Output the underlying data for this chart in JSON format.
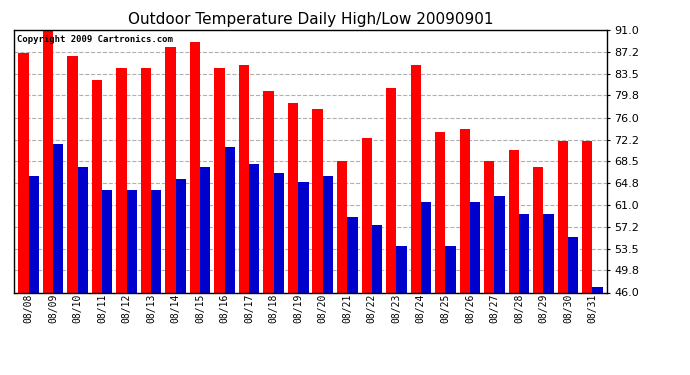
{
  "title": "Outdoor Temperature Daily High/Low 20090901",
  "copyright": "Copyright 2009 Cartronics.com",
  "dates": [
    "08/08",
    "08/09",
    "08/10",
    "08/11",
    "08/12",
    "08/13",
    "08/14",
    "08/15",
    "08/16",
    "08/17",
    "08/18",
    "08/19",
    "08/20",
    "08/21",
    "08/22",
    "08/23",
    "08/24",
    "08/25",
    "08/26",
    "08/27",
    "08/28",
    "08/29",
    "08/30",
    "08/31"
  ],
  "highs": [
    87.0,
    91.0,
    86.5,
    82.5,
    84.5,
    84.5,
    88.0,
    89.0,
    84.5,
    85.0,
    80.5,
    78.5,
    77.5,
    68.5,
    72.5,
    81.0,
    85.0,
    73.5,
    74.0,
    68.5,
    70.5,
    67.5,
    72.0,
    72.0
  ],
  "lows": [
    66.0,
    71.5,
    67.5,
    63.5,
    63.5,
    63.5,
    65.5,
    67.5,
    71.0,
    68.0,
    66.5,
    65.0,
    66.0,
    59.0,
    57.5,
    54.0,
    61.5,
    54.0,
    61.5,
    62.5,
    59.5,
    59.5,
    55.5,
    47.0
  ],
  "high_color": "#ff0000",
  "low_color": "#0000cc",
  "bg_color": "#ffffff",
  "plot_bg_color": "#ffffff",
  "grid_color": "#b0b0b0",
  "title_fontsize": 11,
  "yticks": [
    46.0,
    49.8,
    53.5,
    57.2,
    61.0,
    64.8,
    68.5,
    72.2,
    76.0,
    79.8,
    83.5,
    87.2,
    91.0
  ],
  "ymin": 46.0,
  "ymax": 91.0
}
